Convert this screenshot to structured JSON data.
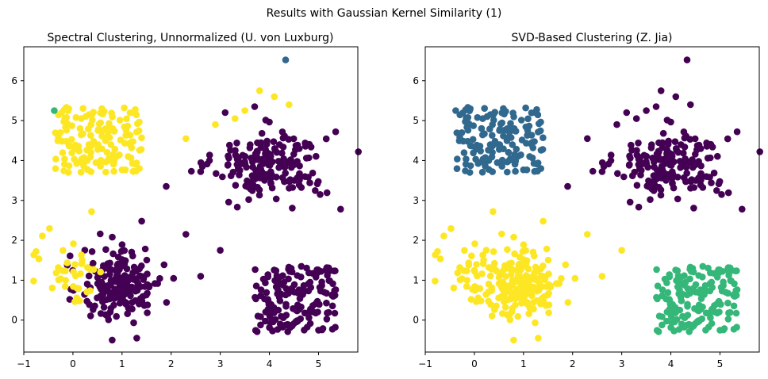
{
  "figure": {
    "suptitle": "Results with Gaussian Kernel Similarity (1)"
  },
  "colors": {
    "purple": "#440154",
    "blue": "#31688e",
    "green": "#35b779",
    "yellow": "#fde725"
  },
  "chart_data": [
    {
      "type": "scatter",
      "title": "Spectral Clustering, Unnormalized (U. von Luxburg)",
      "xlabel": "",
      "ylabel": "",
      "xlim": [
        -1,
        5.8
      ],
      "ylim": [
        -0.8,
        6.85
      ],
      "xticks": [
        -1,
        0,
        1,
        2,
        3,
        4,
        5
      ],
      "yticks": [
        0,
        1,
        2,
        3,
        4,
        5,
        6
      ],
      "groups": [
        {
          "cluster": "upper-left square",
          "color": "yellow",
          "x_range": [
            -0.4,
            1.4
          ],
          "y_range": [
            3.7,
            5.35
          ],
          "points": 150
        },
        {
          "cluster": "upper-right blob",
          "color": "purple",
          "center": [
            4.0,
            3.9
          ],
          "spread": [
            0.75,
            0.55
          ],
          "points": 190
        },
        {
          "cluster": "lower-left blob",
          "color": "purple",
          "center": [
            1.0,
            0.9
          ],
          "spread": [
            0.55,
            0.6
          ],
          "points": 190
        },
        {
          "cluster": "lower-left fringe",
          "color": "yellow",
          "center": [
            0.0,
            1.3
          ],
          "spread": [
            0.45,
            0.6
          ],
          "points": 35
        },
        {
          "cluster": "lower-right square",
          "color": "purple",
          "x_range": [
            3.7,
            5.35
          ],
          "y_range": [
            -0.3,
            1.35
          ],
          "points": 170
        }
      ],
      "extra_points": [
        {
          "x": 4.33,
          "y": 6.52,
          "color": "blue"
        },
        {
          "x": -0.38,
          "y": 5.25,
          "color": "green"
        },
        {
          "x": 3.8,
          "y": 5.75,
          "color": "yellow"
        },
        {
          "x": 4.1,
          "y": 5.6,
          "color": "yellow"
        },
        {
          "x": 3.5,
          "y": 5.25,
          "color": "yellow"
        },
        {
          "x": 3.3,
          "y": 5.05,
          "color": "yellow"
        },
        {
          "x": 4.4,
          "y": 5.4,
          "color": "yellow"
        },
        {
          "x": 2.9,
          "y": 4.9,
          "color": "yellow"
        },
        {
          "x": 2.3,
          "y": 4.55,
          "color": "yellow"
        },
        {
          "x": 3.1,
          "y": 5.2,
          "color": "purple"
        },
        {
          "x": 3.7,
          "y": 5.35,
          "color": "purple"
        },
        {
          "x": 1.9,
          "y": 3.35,
          "color": "purple"
        },
        {
          "x": 5.45,
          "y": 2.78,
          "color": "purple"
        },
        {
          "x": 5.35,
          "y": 4.72,
          "color": "purple"
        },
        {
          "x": 2.6,
          "y": 3.72,
          "color": "purple"
        },
        {
          "x": 3.0,
          "y": 1.75,
          "color": "purple"
        },
        {
          "x": 2.6,
          "y": 1.1,
          "color": "purple"
        },
        {
          "x": 2.3,
          "y": 2.15,
          "color": "purple"
        },
        {
          "x": 1.4,
          "y": 2.48,
          "color": "purple"
        },
        {
          "x": 0.38,
          "y": 2.72,
          "color": "yellow"
        },
        {
          "x": -0.75,
          "y": 1.72,
          "color": "yellow"
        },
        {
          "x": -0.8,
          "y": 0.98,
          "color": "yellow"
        },
        {
          "x": 1.3,
          "y": -0.45,
          "color": "purple"
        },
        {
          "x": 0.8,
          "y": -0.5,
          "color": "purple"
        }
      ]
    },
    {
      "type": "scatter",
      "title": "SVD-Based Clustering (Z. Jia)",
      "xlabel": "",
      "ylabel": "",
      "xlim": [
        -1,
        5.8
      ],
      "ylim": [
        -0.8,
        6.85
      ],
      "xticks": [
        -1,
        0,
        1,
        2,
        3,
        4,
        5
      ],
      "yticks": [
        0,
        1,
        2,
        3,
        4,
        5,
        6
      ],
      "groups": [
        {
          "cluster": "upper-left square",
          "color": "blue",
          "x_range": [
            -0.4,
            1.4
          ],
          "y_range": [
            3.7,
            5.35
          ],
          "points": 150
        },
        {
          "cluster": "upper-right blob",
          "color": "purple",
          "center": [
            4.0,
            3.9
          ],
          "spread": [
            0.75,
            0.55
          ],
          "points": 190
        },
        {
          "cluster": "lower-left blob",
          "color": "yellow",
          "center": [
            1.0,
            0.9
          ],
          "spread": [
            0.55,
            0.6
          ],
          "points": 190
        },
        {
          "cluster": "lower-left fringe",
          "color": "yellow",
          "center": [
            0.0,
            1.3
          ],
          "spread": [
            0.45,
            0.6
          ],
          "points": 35
        },
        {
          "cluster": "lower-right square",
          "color": "green",
          "x_range": [
            3.7,
            5.35
          ],
          "y_range": [
            -0.3,
            1.35
          ],
          "points": 170
        }
      ],
      "extra_points": [
        {
          "x": 4.33,
          "y": 6.52,
          "color": "purple"
        },
        {
          "x": -0.38,
          "y": 5.25,
          "color": "blue"
        },
        {
          "x": 3.8,
          "y": 5.75,
          "color": "purple"
        },
        {
          "x": 4.1,
          "y": 5.6,
          "color": "purple"
        },
        {
          "x": 3.5,
          "y": 5.25,
          "color": "purple"
        },
        {
          "x": 3.3,
          "y": 5.05,
          "color": "purple"
        },
        {
          "x": 4.4,
          "y": 5.4,
          "color": "purple"
        },
        {
          "x": 2.9,
          "y": 4.9,
          "color": "purple"
        },
        {
          "x": 2.3,
          "y": 4.55,
          "color": "purple"
        },
        {
          "x": 3.1,
          "y": 5.2,
          "color": "purple"
        },
        {
          "x": 3.7,
          "y": 5.35,
          "color": "purple"
        },
        {
          "x": 1.9,
          "y": 3.35,
          "color": "purple"
        },
        {
          "x": 5.45,
          "y": 2.78,
          "color": "purple"
        },
        {
          "x": 5.35,
          "y": 4.72,
          "color": "purple"
        },
        {
          "x": 2.6,
          "y": 3.72,
          "color": "purple"
        },
        {
          "x": 3.0,
          "y": 1.75,
          "color": "yellow"
        },
        {
          "x": 2.6,
          "y": 1.1,
          "color": "yellow"
        },
        {
          "x": 2.3,
          "y": 2.15,
          "color": "yellow"
        },
        {
          "x": 1.4,
          "y": 2.48,
          "color": "yellow"
        },
        {
          "x": 0.38,
          "y": 2.72,
          "color": "yellow"
        },
        {
          "x": -0.75,
          "y": 1.72,
          "color": "yellow"
        },
        {
          "x": -0.8,
          "y": 0.98,
          "color": "yellow"
        },
        {
          "x": 1.3,
          "y": -0.45,
          "color": "yellow"
        },
        {
          "x": 0.8,
          "y": -0.5,
          "color": "yellow"
        }
      ]
    }
  ]
}
